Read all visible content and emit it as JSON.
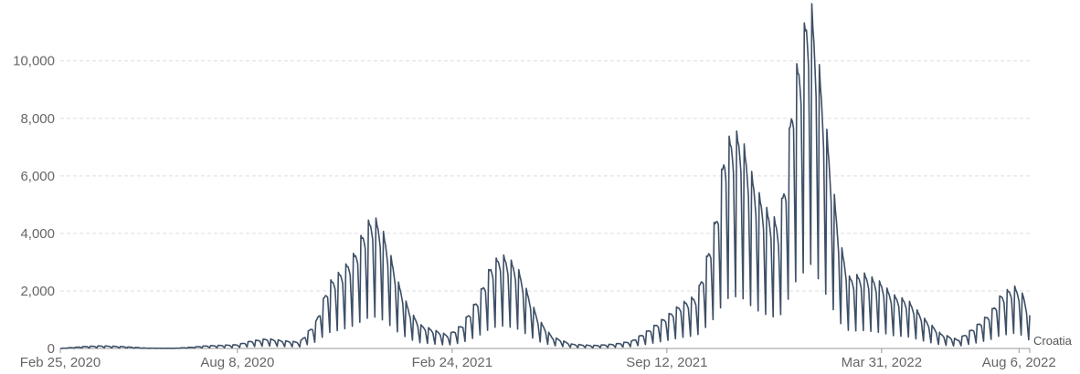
{
  "chart_data": {
    "type": "line",
    "title": "",
    "xlabel": "",
    "ylabel": "",
    "x_range": [
      "2020-02-25",
      "2022-08-16"
    ],
    "ylim": [
      0,
      11800
    ],
    "grid": true,
    "y_ticks": [
      {
        "value": 0,
        "label": "0"
      },
      {
        "value": 2000,
        "label": "2,000"
      },
      {
        "value": 4000,
        "label": "4,000"
      },
      {
        "value": 6000,
        "label": "6,000"
      },
      {
        "value": 8000,
        "label": "8,000"
      },
      {
        "value": 10000,
        "label": "10,000"
      }
    ],
    "x_ticks": [
      {
        "date": "2020-02-25",
        "label": "Feb 25, 2020"
      },
      {
        "date": "2020-08-08",
        "label": "Aug 8, 2020"
      },
      {
        "date": "2021-02-24",
        "label": "Feb 24, 2021"
      },
      {
        "date": "2021-09-12",
        "label": "Sep 12, 2021"
      },
      {
        "date": "2022-03-31",
        "label": "Mar 31, 2022"
      },
      {
        "date": "2022-08-06",
        "label": "Aug 6, 2022"
      }
    ],
    "series": [
      {
        "name": "Croatia",
        "color": "#3d4f66",
        "points": [
          [
            "2020-02-25",
            0
          ],
          [
            "2020-03-20",
            70
          ],
          [
            "2020-04-05",
            90
          ],
          [
            "2020-04-25",
            60
          ],
          [
            "2020-05-15",
            10
          ],
          [
            "2020-06-10",
            5
          ],
          [
            "2020-06-25",
            40
          ],
          [
            "2020-07-10",
            90
          ],
          [
            "2020-07-25",
            110
          ],
          [
            "2020-08-08",
            130
          ],
          [
            "2020-08-20",
            250
          ],
          [
            "2020-09-05",
            330
          ],
          [
            "2020-09-20",
            260
          ],
          [
            "2020-10-05",
            220
          ],
          [
            "2020-10-20",
            900
          ],
          [
            "2020-11-01",
            2200
          ],
          [
            "2020-11-15",
            2700
          ],
          [
            "2020-11-25",
            3200
          ],
          [
            "2020-12-05",
            4100
          ],
          [
            "2020-12-12",
            4450
          ],
          [
            "2020-12-20",
            4100
          ],
          [
            "2020-12-28",
            3200
          ],
          [
            "2021-01-05",
            2200
          ],
          [
            "2021-01-15",
            1300
          ],
          [
            "2021-01-25",
            800
          ],
          [
            "2021-02-05",
            650
          ],
          [
            "2021-02-20",
            450
          ],
          [
            "2021-03-05",
            800
          ],
          [
            "2021-03-20",
            1700
          ],
          [
            "2021-04-01",
            2800
          ],
          [
            "2021-04-10",
            3150
          ],
          [
            "2021-04-18",
            3000
          ],
          [
            "2021-04-26",
            2700
          ],
          [
            "2021-05-05",
            1900
          ],
          [
            "2021-05-15",
            1000
          ],
          [
            "2021-05-28",
            400
          ],
          [
            "2021-06-15",
            150
          ],
          [
            "2021-07-05",
            100
          ],
          [
            "2021-07-25",
            150
          ],
          [
            "2021-08-10",
            250
          ],
          [
            "2021-08-25",
            600
          ],
          [
            "2021-09-12",
            1100
          ],
          [
            "2021-09-25",
            1500
          ],
          [
            "2021-10-10",
            1800
          ],
          [
            "2021-10-20",
            3200
          ],
          [
            "2021-10-28",
            4500
          ],
          [
            "2021-11-05",
            6800
          ],
          [
            "2021-11-12",
            7200
          ],
          [
            "2021-11-20",
            7200
          ],
          [
            "2021-11-27",
            6200
          ],
          [
            "2021-12-05",
            5300
          ],
          [
            "2021-12-15",
            4600
          ],
          [
            "2021-12-25",
            4200
          ],
          [
            "2022-01-01",
            6000
          ],
          [
            "2022-01-08",
            9000
          ],
          [
            "2022-01-15",
            10000
          ],
          [
            "2022-01-20",
            11300
          ],
          [
            "2022-01-24",
            11700
          ],
          [
            "2022-01-30",
            10000
          ],
          [
            "2022-02-05",
            8200
          ],
          [
            "2022-02-12",
            6000
          ],
          [
            "2022-02-20",
            3600
          ],
          [
            "2022-03-01",
            2400
          ],
          [
            "2022-03-15",
            2500
          ],
          [
            "2022-03-31",
            2200
          ],
          [
            "2022-04-10",
            1800
          ],
          [
            "2022-04-25",
            1600
          ],
          [
            "2022-05-10",
            1000
          ],
          [
            "2022-05-25",
            500
          ],
          [
            "2022-06-10",
            300
          ],
          [
            "2022-06-25",
            700
          ],
          [
            "2022-07-10",
            1200
          ],
          [
            "2022-07-20",
            1800
          ],
          [
            "2022-08-01",
            2100
          ],
          [
            "2022-08-10",
            1800
          ],
          [
            "2022-08-16",
            1100
          ]
        ]
      }
    ]
  }
}
